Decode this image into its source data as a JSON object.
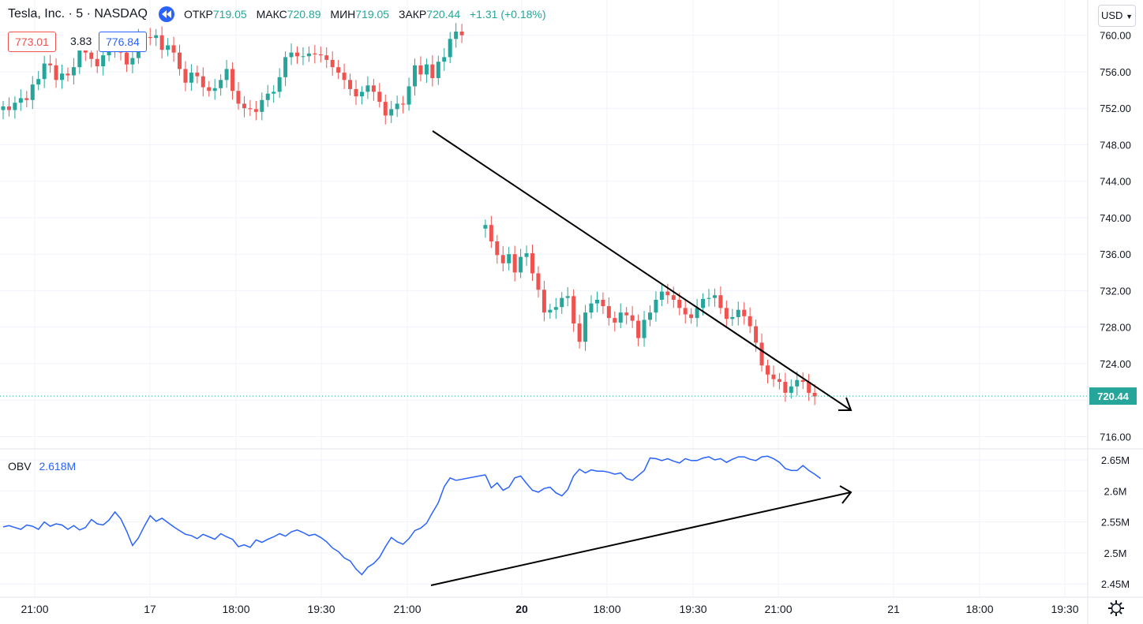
{
  "header": {
    "symbol": "Tesla, Inc. · 5 · NASDAQ",
    "open_label": "ОТКР",
    "open": "719.05",
    "high_label": "МАКС",
    "high": "720.89",
    "low_label": "МИН",
    "low": "719.05",
    "close_label": "ЗАКР",
    "close": "720.44",
    "change": "+1.31 (+0.18%)"
  },
  "quote": {
    "bid": "773.01",
    "spread": "3.83",
    "ask": "776.84"
  },
  "currency": "USD",
  "obv": {
    "label": "OBV",
    "value": "2.618M"
  },
  "colors": {
    "up": "#26a69a",
    "down": "#ef5350",
    "obv": "#2962ff",
    "grid": "#f0f3fa"
  },
  "chart_data": [
    {
      "type": "candlestick",
      "y_ticks": [
        "760.00",
        "756.00",
        "752.00",
        "748.00",
        "744.00",
        "740.00",
        "736.00",
        "732.00",
        "728.00",
        "724.00",
        "720.00",
        "716.00"
      ],
      "ylim": [
        715,
        763
      ],
      "x_ticks": [
        "21:00",
        "17",
        "18:00",
        "19:30",
        "21:00",
        "20",
        "18:00",
        "19:30",
        "21:00",
        "21",
        "18:00",
        "19:30"
      ],
      "last_price": "720.44",
      "segments": [
        {
          "start": 0,
          "values": [
            752.2,
            751.8,
            752.6,
            753.1,
            752.9,
            754.6,
            755.2,
            756.9,
            756.7,
            755.1,
            755.8,
            755.6,
            756.5,
            758.5,
            758.1,
            757.4,
            756.6,
            757.8,
            758.5,
            759.0,
            758.1,
            756.8,
            757.5,
            759.7,
            759.8,
            759.7,
            760.0,
            758.4,
            758.9,
            758.1,
            756.3,
            754.8,
            755.9,
            755.5,
            754.3,
            753.9,
            754.2,
            755.1,
            756.3,
            753.9,
            752.5,
            752.0,
            751.9,
            751.6,
            752.9,
            753.6,
            753.8,
            755.4,
            757.6,
            758.1,
            757.7,
            757.7,
            758.0,
            757.9,
            757.8,
            757.3,
            756.5,
            755.9,
            755.1,
            754.1,
            753.3,
            753.8,
            754.5,
            753.8,
            752.7,
            751.2,
            751.9,
            752.5,
            752.4,
            754.4,
            756.7,
            755.7,
            756.8,
            755.3,
            757.1,
            757.6,
            759.6,
            760.4,
            760.0
          ]
        },
        {
          "start": 82,
          "values": [
            739.2,
            737.4,
            735.9,
            735.0,
            736.0,
            734.0,
            735.7,
            736.1,
            733.9,
            732.1,
            729.6,
            729.9,
            730.2,
            731.2,
            731.4,
            728.4,
            726.4,
            729.6,
            730.6,
            731.0,
            730.3,
            729.0,
            728.5,
            729.6,
            729.3,
            728.7,
            726.8,
            728.8,
            729.6,
            731.0,
            731.9,
            731.5,
            731.0,
            730.1,
            729.4,
            729.0,
            730.1,
            731.1,
            731.2,
            731.5,
            730.1,
            728.9,
            729.1,
            729.9,
            729.2,
            728.1,
            726.3,
            723.8,
            722.8,
            722.3,
            722.0,
            720.8,
            721.5,
            722.2,
            722.0,
            720.8,
            720.4
          ]
        }
      ]
    },
    {
      "type": "line",
      "name": "OBV",
      "y_ticks": [
        "2.65M",
        "2.6M",
        "2.55M",
        "2.5M",
        "2.45M"
      ],
      "ylim": [
        2.435,
        2.664
      ],
      "segments": [
        {
          "start": 0,
          "values": [
            2.542,
            2.544,
            2.541,
            2.538,
            2.545,
            2.543,
            2.538,
            2.55,
            2.543,
            2.547,
            2.545,
            2.538,
            2.544,
            2.537,
            2.541,
            2.554,
            2.547,
            2.545,
            2.553,
            2.566,
            2.555,
            2.535,
            2.512,
            2.524,
            2.543,
            2.56,
            2.551,
            2.556,
            2.549,
            2.542,
            2.536,
            2.53,
            2.528,
            2.523,
            2.53,
            2.526,
            2.522,
            2.531,
            2.526,
            2.522,
            2.51,
            2.513,
            2.509,
            2.521,
            2.517,
            2.522,
            2.526,
            2.531,
            2.527,
            2.534,
            2.537,
            2.533,
            2.528,
            2.53,
            2.525,
            2.518,
            2.508,
            2.502,
            2.492,
            2.487,
            2.474,
            2.465,
            2.477,
            2.483,
            2.493,
            2.51,
            2.525,
            2.518,
            2.514,
            2.523,
            2.536,
            2.54,
            2.548,
            2.565,
            2.581,
            2.607,
            2.621,
            2.617
          ]
        },
        {
          "start": 82,
          "values": [
            2.626,
            2.605,
            2.613,
            2.601,
            2.606,
            2.621,
            2.624,
            2.612,
            2.601,
            2.598,
            2.604,
            2.606,
            2.597,
            2.592,
            2.602,
            2.624,
            2.635,
            2.629,
            2.634,
            2.632,
            2.632,
            2.63,
            2.627,
            2.629,
            2.62,
            2.617,
            2.625,
            2.633,
            2.653,
            2.652,
            2.649,
            2.652,
            2.648,
            2.645,
            2.652,
            2.649,
            2.649,
            2.653,
            2.655,
            2.65,
            2.652,
            2.646,
            2.651,
            2.655,
            2.655,
            2.651,
            2.649,
            2.655,
            2.656,
            2.652,
            2.646,
            2.636,
            2.633,
            2.633,
            2.641,
            2.633,
            2.627,
            2.62
          ]
        }
      ]
    }
  ]
}
